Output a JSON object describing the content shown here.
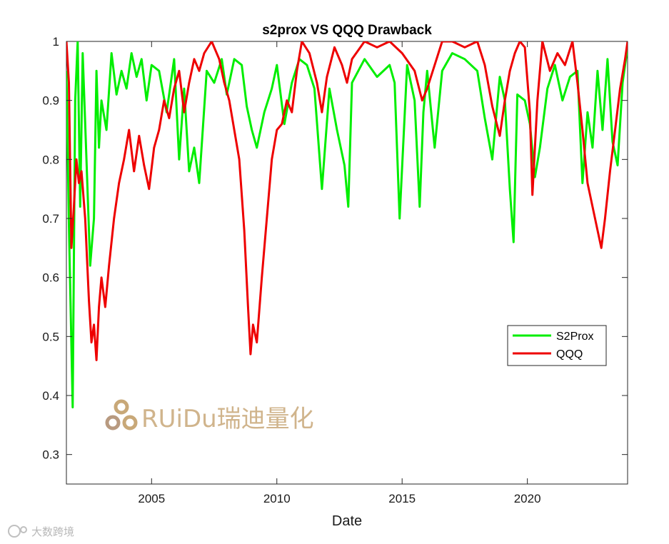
{
  "chart_data": {
    "type": "line",
    "title": "s2prox VS QQQ Drawback",
    "xlabel": "Date",
    "ylabel": "",
    "xlim": [
      2001.6,
      2024.0
    ],
    "ylim": [
      0.25,
      1.0
    ],
    "x_ticks": [
      2005,
      2010,
      2015,
      2020
    ],
    "x_tick_labels": [
      "2005",
      "2010",
      "2015",
      "2020"
    ],
    "y_ticks": [
      0.3,
      0.4,
      0.5,
      0.6,
      0.7,
      0.8,
      0.9,
      1.0
    ],
    "y_tick_labels": [
      "0.3",
      "0.4",
      "0.5",
      "0.6",
      "0.7",
      "0.8",
      "0.9",
      "1"
    ],
    "grid": false,
    "legend_position": "right",
    "series": [
      {
        "name": "S2Prox",
        "color": "#00ee00",
        "x": [
          2001.6,
          2001.7,
          2001.85,
          2001.95,
          2002.05,
          2002.15,
          2002.25,
          2002.4,
          2002.55,
          2002.7,
          2002.8,
          2002.9,
          2003.0,
          2003.2,
          2003.4,
          2003.6,
          2003.8,
          2004.0,
          2004.2,
          2004.4,
          2004.6,
          2004.8,
          2005.0,
          2005.3,
          2005.6,
          2005.9,
          2006.1,
          2006.3,
          2006.5,
          2006.7,
          2006.9,
          2007.2,
          2007.5,
          2007.8,
          2008.0,
          2008.3,
          2008.6,
          2008.8,
          2009.0,
          2009.2,
          2009.5,
          2009.8,
          2010.0,
          2010.3,
          2010.6,
          2010.9,
          2011.2,
          2011.5,
          2011.8,
          2012.1,
          2012.4,
          2012.7,
          2012.85,
          2013.0,
          2013.5,
          2014.0,
          2014.5,
          2014.7,
          2014.9,
          2015.2,
          2015.5,
          2015.7,
          2015.85,
          2016.0,
          2016.3,
          2016.6,
          2017.0,
          2017.5,
          2018.0,
          2018.3,
          2018.6,
          2018.9,
          2019.1,
          2019.3,
          2019.45,
          2019.6,
          2019.9,
          2020.1,
          2020.3,
          2020.5,
          2020.8,
          2021.1,
          2021.4,
          2021.7,
          2022.0,
          2022.2,
          2022.4,
          2022.6,
          2022.8,
          2023.0,
          2023.2,
          2023.4,
          2023.6,
          2023.8,
          2024.0
        ],
        "values": [
          0.95,
          0.69,
          0.38,
          0.9,
          1.0,
          0.72,
          0.98,
          0.8,
          0.62,
          0.7,
          0.95,
          0.82,
          0.9,
          0.85,
          0.98,
          0.91,
          0.95,
          0.92,
          0.98,
          0.94,
          0.97,
          0.9,
          0.96,
          0.95,
          0.88,
          0.97,
          0.8,
          0.92,
          0.78,
          0.82,
          0.76,
          0.95,
          0.93,
          0.97,
          0.91,
          0.97,
          0.96,
          0.89,
          0.85,
          0.82,
          0.88,
          0.92,
          0.96,
          0.86,
          0.93,
          0.97,
          0.96,
          0.92,
          0.75,
          0.92,
          0.85,
          0.79,
          0.72,
          0.93,
          0.97,
          0.94,
          0.96,
          0.93,
          0.7,
          0.96,
          0.9,
          0.72,
          0.88,
          0.95,
          0.82,
          0.95,
          0.98,
          0.97,
          0.95,
          0.87,
          0.8,
          0.94,
          0.9,
          0.75,
          0.66,
          0.91,
          0.9,
          0.86,
          0.77,
          0.82,
          0.92,
          0.96,
          0.9,
          0.94,
          0.95,
          0.76,
          0.88,
          0.82,
          0.95,
          0.85,
          0.97,
          0.83,
          0.79,
          0.93,
          0.99
        ]
      },
      {
        "name": "QQQ",
        "color": "#ee0000",
        "x": [
          2001.6,
          2001.7,
          2001.8,
          2001.9,
          2002.0,
          2002.1,
          2002.2,
          2002.35,
          2002.5,
          2002.6,
          2002.7,
          2002.8,
          2002.9,
          2003.0,
          2003.15,
          2003.3,
          2003.5,
          2003.7,
          2003.9,
          2004.1,
          2004.3,
          2004.5,
          2004.7,
          2004.9,
          2005.1,
          2005.3,
          2005.5,
          2005.7,
          2005.9,
          2006.1,
          2006.3,
          2006.5,
          2006.7,
          2006.9,
          2007.1,
          2007.4,
          2007.7,
          2007.9,
          2008.1,
          2008.3,
          2008.5,
          2008.7,
          2008.85,
          2008.95,
          2009.05,
          2009.2,
          2009.4,
          2009.6,
          2009.8,
          2010.0,
          2010.2,
          2010.4,
          2010.6,
          2010.8,
          2011.0,
          2011.3,
          2011.6,
          2011.8,
          2012.0,
          2012.3,
          2012.6,
          2012.8,
          2013.0,
          2013.5,
          2014.0,
          2014.5,
          2015.0,
          2015.5,
          2015.8,
          2016.0,
          2016.3,
          2016.6,
          2017.0,
          2017.5,
          2018.0,
          2018.3,
          2018.6,
          2018.9,
          2019.1,
          2019.3,
          2019.5,
          2019.7,
          2019.9,
          2020.1,
          2020.2,
          2020.4,
          2020.6,
          2020.9,
          2021.2,
          2021.5,
          2021.8,
          2022.0,
          2022.2,
          2022.4,
          2022.6,
          2022.8,
          2022.95,
          2023.1,
          2023.3,
          2023.5,
          2023.7,
          2023.9,
          2024.0
        ],
        "values": [
          1.0,
          0.93,
          0.65,
          0.72,
          0.8,
          0.76,
          0.78,
          0.7,
          0.56,
          0.49,
          0.52,
          0.46,
          0.55,
          0.6,
          0.55,
          0.62,
          0.7,
          0.76,
          0.8,
          0.85,
          0.78,
          0.84,
          0.79,
          0.75,
          0.82,
          0.85,
          0.9,
          0.87,
          0.92,
          0.95,
          0.88,
          0.93,
          0.97,
          0.95,
          0.98,
          1.0,
          0.97,
          0.93,
          0.9,
          0.85,
          0.8,
          0.68,
          0.55,
          0.47,
          0.52,
          0.49,
          0.6,
          0.7,
          0.8,
          0.85,
          0.86,
          0.9,
          0.88,
          0.95,
          1.0,
          0.98,
          0.93,
          0.88,
          0.94,
          0.99,
          0.96,
          0.93,
          0.97,
          1.0,
          0.99,
          1.0,
          0.98,
          0.95,
          0.9,
          0.92,
          0.96,
          1.0,
          1.0,
          0.99,
          1.0,
          0.96,
          0.89,
          0.84,
          0.9,
          0.95,
          0.98,
          1.0,
          0.99,
          0.88,
          0.74,
          0.9,
          1.0,
          0.95,
          0.98,
          0.96,
          1.0,
          0.93,
          0.85,
          0.76,
          0.72,
          0.68,
          0.65,
          0.7,
          0.78,
          0.85,
          0.92,
          0.97,
          1.0
        ]
      }
    ]
  },
  "watermark": {
    "text": "RUiDu瑞迪量化",
    "color": "#c8a878"
  },
  "corner_mark": {
    "text": "大数跨境",
    "color": "#b8b8b8"
  }
}
